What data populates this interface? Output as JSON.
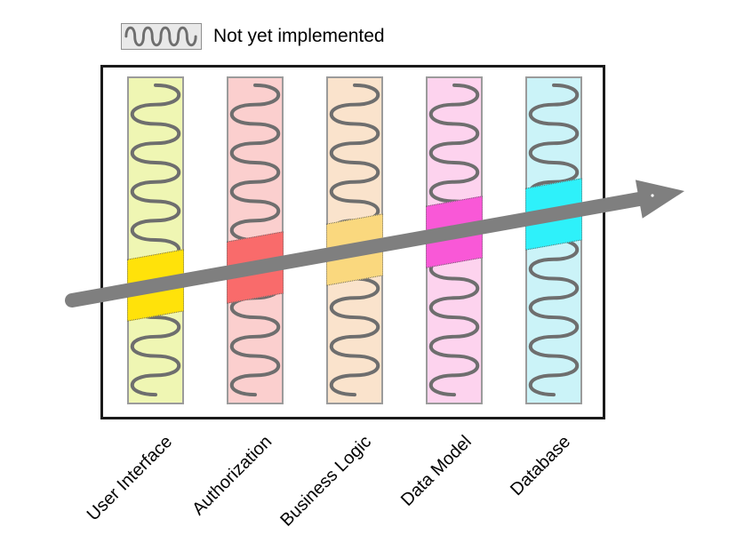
{
  "legend": {
    "label": "Not yet implemented",
    "pattern": "squiggle"
  },
  "arrow": {
    "color": "#7f7f7f",
    "direction": "bottom-left-to-top-right"
  },
  "colors": {
    "background": "#ffffff",
    "text": "#000000",
    "frame_border": "#1a1a1a",
    "column_border": "#9b9b9b",
    "squiggle": "#6e6e6e",
    "legend_fill": "#e9e9e9",
    "legend_border": "#8f8f8f"
  },
  "layers": [
    {
      "id": "user-interface",
      "label": "User Interface",
      "color": "#eff6b3",
      "highlight": "#ffe20a"
    },
    {
      "id": "authorization",
      "label": "Authorization",
      "color": "#fbcfce",
      "highlight": "#f96b6b"
    },
    {
      "id": "business-logic",
      "label": "Business Logic",
      "color": "#fae3cc",
      "highlight": "#fad87e"
    },
    {
      "id": "data-model",
      "label": "Data Model",
      "color": "#fdd3ee",
      "highlight": "#f958d7"
    },
    {
      "id": "database",
      "label": "Database",
      "color": "#cbf3f8",
      "highlight": "#2ef1fa"
    }
  ]
}
